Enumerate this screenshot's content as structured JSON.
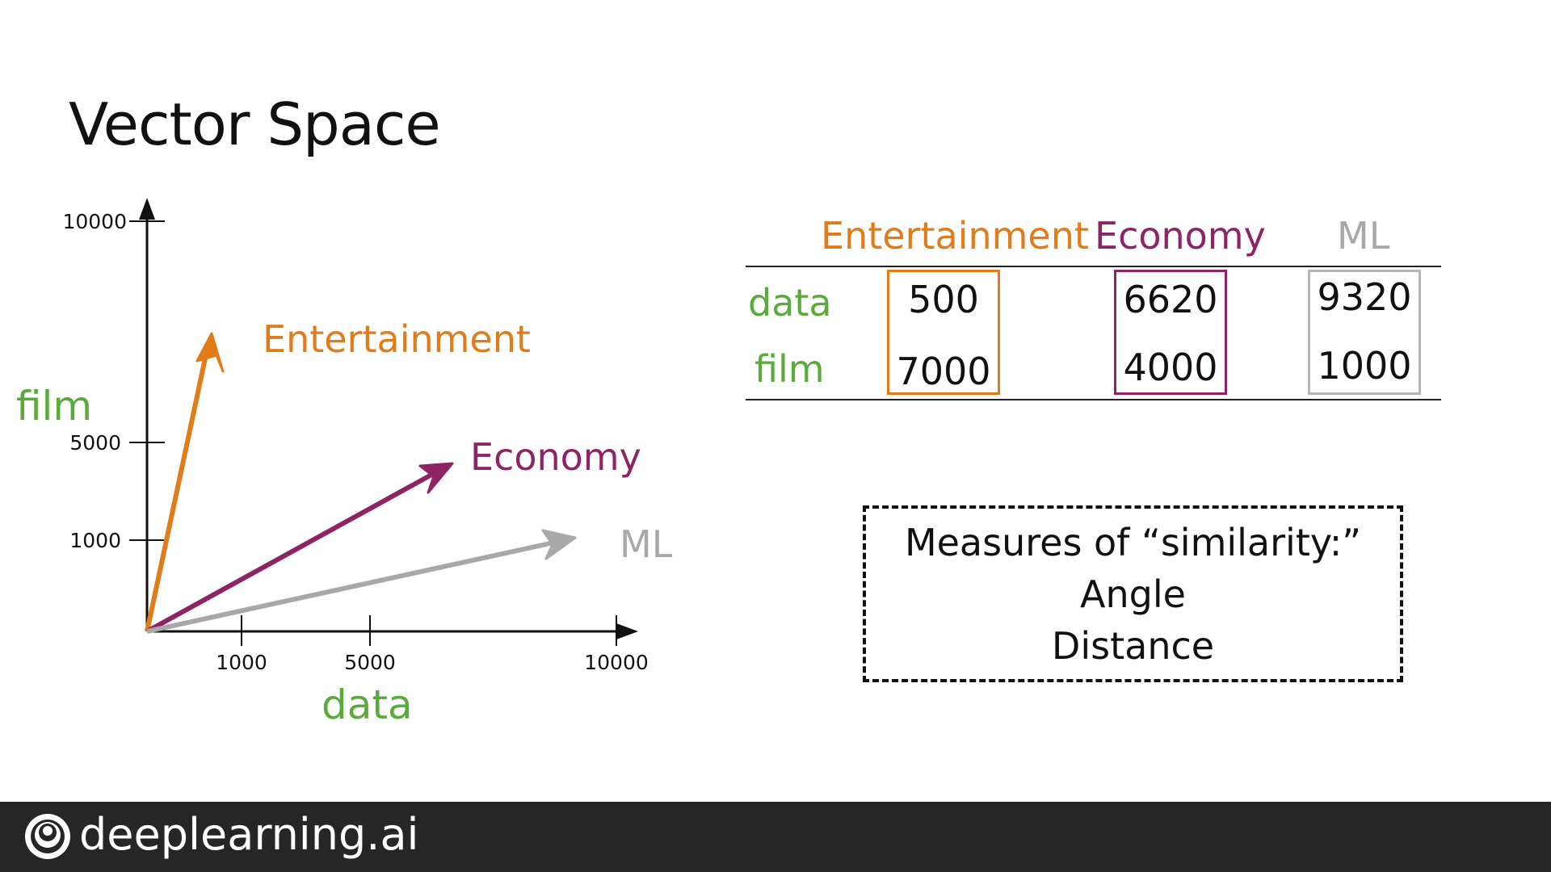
{
  "title": "Vector Space",
  "chart_data": {
    "type": "vector",
    "xlabel": "data",
    "ylabel": "film",
    "x_ticks": [
      "1000",
      "5000",
      "10000"
    ],
    "y_ticks": [
      "10000",
      "5000",
      "1000"
    ],
    "vectors": [
      {
        "name": "Entertainment",
        "data": 500,
        "film": 7000,
        "color": "#e07d1a"
      },
      {
        "name": "Economy",
        "data": 6620,
        "film": 4000,
        "color": "#8e2466"
      },
      {
        "name": "ML",
        "data": 9320,
        "film": 1000,
        "color": "#a8a8a8"
      }
    ],
    "colors": {
      "axis_label": "#5aaa3c"
    }
  },
  "table": {
    "columns": [
      {
        "label": "Entertainment",
        "color": "#e07d1a",
        "data": "500",
        "film": "7000"
      },
      {
        "label": "Economy",
        "color": "#8e2466",
        "data": "6620",
        "film": "4000"
      },
      {
        "label": "ML",
        "color": "#a8a8a8",
        "data": "9320",
        "film": "1000"
      }
    ],
    "rows": [
      "data",
      "film"
    ]
  },
  "similarity": {
    "heading": "Measures of “similarity:”",
    "items": [
      "Angle",
      "Distance"
    ]
  },
  "footer": {
    "brand": "deeplearning.ai",
    "logo_icon": "deeplearning-logo-icon"
  }
}
